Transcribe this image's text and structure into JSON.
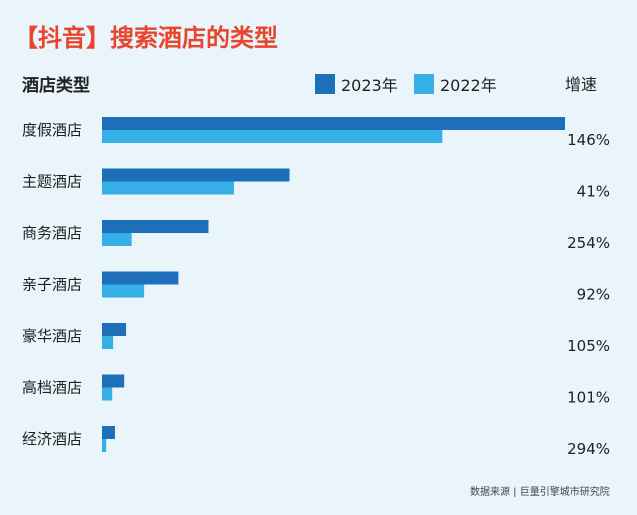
{
  "title": "【抖音】搜索酒店的类型",
  "colors": {
    "series_2023": "#1e6fba",
    "series_2022": "#36aee6",
    "title": "#e8452c"
  },
  "source": "数据来源 | 巨量引擎城市研究院",
  "chart_data": {
    "type": "bar",
    "orientation": "horizontal",
    "category_header": "酒店类型",
    "growth_header": "增速",
    "categories": [
      "度假酒店",
      "主题酒店",
      "商务酒店",
      "亲子酒店",
      "豪华酒店",
      "高档酒店",
      "经济酒店"
    ],
    "series": [
      {
        "name": "2023年",
        "values": [
          100,
          40.5,
          23,
          16.5,
          5.2,
          4.8,
          2.8
        ]
      },
      {
        "name": "2022年",
        "values": [
          73.5,
          28.5,
          6.4,
          9.1,
          2.4,
          2.2,
          0.9
        ]
      }
    ],
    "growth": [
      "146%",
      "41%",
      "254%",
      "92%",
      "105%",
      "101%",
      "294%"
    ],
    "xlim": [
      0,
      100
    ],
    "grid": false,
    "legend": "top"
  }
}
